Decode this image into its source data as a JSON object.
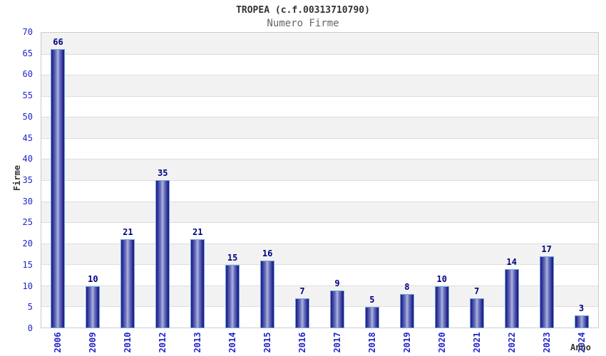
{
  "chart_data": {
    "type": "bar",
    "title": "TROPEA (c.f.00313710790)",
    "subtitle": "Numero Firme",
    "xlabel": "Anno",
    "ylabel": "Firme",
    "categories": [
      "2006",
      "2009",
      "2010",
      "2012",
      "2013",
      "2014",
      "2015",
      "2016",
      "2017",
      "2018",
      "2019",
      "2020",
      "2021",
      "2022",
      "2023",
      "2024"
    ],
    "values": [
      66,
      10,
      21,
      35,
      21,
      15,
      16,
      7,
      9,
      5,
      8,
      10,
      7,
      14,
      17,
      3
    ],
    "ylim": [
      0,
      70
    ],
    "ytick_step": 5,
    "yticks": [
      0,
      5,
      10,
      15,
      20,
      25,
      30,
      35,
      40,
      45,
      50,
      55,
      60,
      65,
      70
    ],
    "grid": true,
    "legend": "none",
    "colors": {
      "bar_dark": "#1c1c85",
      "bar_light": "#aeb6e2",
      "bar_border": "#6fa8dc",
      "value_label": "#000080",
      "axis_tick_label": "#2222cc",
      "band_gray": "#f2f2f2",
      "band_white": "#ffffff",
      "gridline": "#dddddd",
      "plot_border": "#cccccc",
      "title_color": "#333333",
      "subtitle_color": "#666666"
    }
  }
}
